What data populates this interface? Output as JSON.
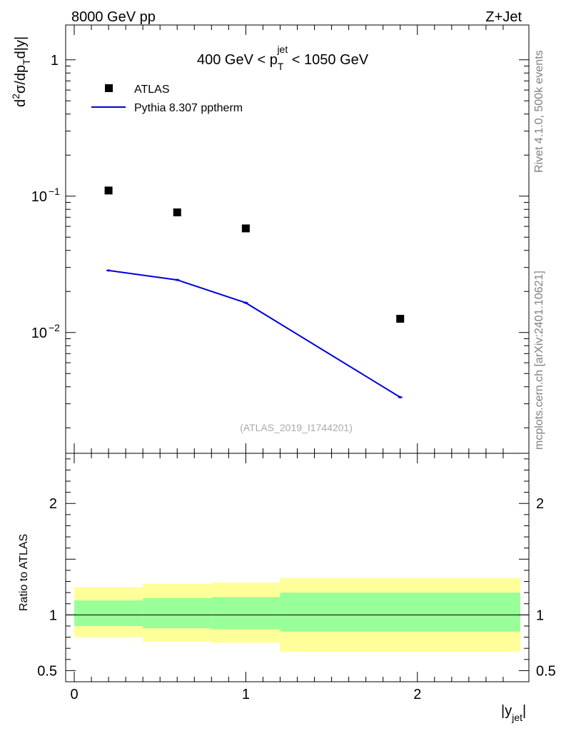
{
  "header": {
    "left_label": "8000 GeV pp",
    "right_label": "Z+Jet"
  },
  "side_labels": {
    "rivet": "Rivet 4.1.0,  500k events",
    "mcplots": "mcplots.cern.ch [arXiv:2401.10621]"
  },
  "chart_data": [
    {
      "type": "scatter",
      "panel": "main",
      "title_parts": {
        "prefix": "400 GeV < p",
        "sub": "T",
        "sup": "jet",
        "suffix": " < 1050 GeV"
      },
      "ylabel_parts": {
        "d": "d",
        "two": "2",
        "sigma_dp": "σ/dp",
        "T": "T",
        "rest": "d|y|"
      },
      "yscale": "log",
      "ylim": [
        0.0013,
        1.8
      ],
      "xlim": [
        -0.05,
        2.65
      ],
      "yticks": [
        {
          "value": 1,
          "label": "1"
        },
        {
          "value": 0.1,
          "label_base": "10",
          "label_exp": "−1"
        },
        {
          "value": 0.01,
          "label_base": "10",
          "label_exp": "−2"
        }
      ],
      "legend": {
        "placement": "top-left",
        "entries": [
          {
            "label": "ATLAS",
            "marker": "square",
            "color": "#000000"
          },
          {
            "label": "Pythia 8.307 pptherm",
            "marker": "line",
            "color": "#0000dd"
          }
        ]
      },
      "series": [
        {
          "name": "ATLAS",
          "x": [
            0.2,
            0.6,
            1.0,
            1.9
          ],
          "y": [
            0.11,
            0.076,
            0.058,
            0.0126
          ],
          "color": "#000000"
        },
        {
          "name": "Pythia 8.307 pptherm",
          "x": [
            0.2,
            0.6,
            1.0,
            1.9
          ],
          "y": [
            0.0285,
            0.0243,
            0.0165,
            0.00335
          ],
          "color": "#0000dd"
        }
      ],
      "annotation": "(ATLAS_2019_I1744201)"
    },
    {
      "type": "area",
      "panel": "ratio",
      "ylabel": "Ratio to ATLAS",
      "ylim": [
        0.4,
        2.45
      ],
      "xlim": [
        -0.05,
        2.65
      ],
      "xlabel_parts": {
        "y": "|y",
        "sub": "jet",
        "close": "|"
      },
      "xticks": [
        {
          "value": 0,
          "label": "0"
        },
        {
          "value": 1,
          "label": "1"
        },
        {
          "value": 2,
          "label": "2"
        }
      ],
      "yticks": [
        {
          "value": 0.5,
          "label": "0.5"
        },
        {
          "value": 1,
          "label": "1"
        },
        {
          "value": 2,
          "label": "2"
        }
      ],
      "reference_line": 1,
      "bands": [
        {
          "x_low": 0.0,
          "x_high": 0.4,
          "yellow": [
            0.8,
            1.25
          ],
          "green": [
            0.9,
            1.13
          ]
        },
        {
          "x_low": 0.4,
          "x_high": 0.8,
          "yellow": [
            0.76,
            1.28
          ],
          "green": [
            0.88,
            1.15
          ]
        },
        {
          "x_low": 0.8,
          "x_high": 1.2,
          "yellow": [
            0.75,
            1.29
          ],
          "green": [
            0.87,
            1.16
          ]
        },
        {
          "x_low": 1.2,
          "x_high": 2.6,
          "yellow": [
            0.67,
            1.33
          ],
          "green": [
            0.85,
            1.2
          ]
        }
      ],
      "band_colors": {
        "yellow": "#ffff99",
        "green": "#99ff99"
      }
    }
  ]
}
